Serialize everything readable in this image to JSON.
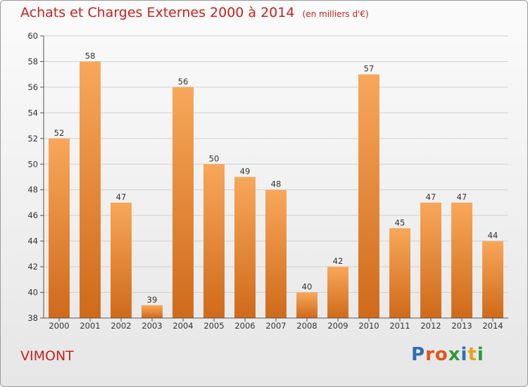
{
  "title": "Achats et Charges Externes 2000 à 2014",
  "unit": "(en milliers d'€)",
  "place": "VIMONT",
  "brand": {
    "letters": [
      "P",
      "r",
      "o",
      "x",
      "i",
      "t",
      "i"
    ],
    "colors": [
      "#2e6fb5",
      "#e2541b",
      "#e2541b",
      "#2f9a3a",
      "#2e6fb5",
      "#e8a11c",
      "#2f9a3a"
    ]
  },
  "colors": {
    "title": "#c8201e",
    "bar_top": "#f8a75a",
    "bar_bottom": "#cf6a1a",
    "axis": "#555555",
    "grid": "#cfcfcf"
  },
  "chart_data": {
    "type": "bar",
    "title": "Achats et Charges Externes 2000 à 2014",
    "xlabel": "",
    "ylabel": "",
    "categories": [
      "2000",
      "2001",
      "2002",
      "2003",
      "2004",
      "2005",
      "2006",
      "2007",
      "2008",
      "2009",
      "2010",
      "2011",
      "2012",
      "2013",
      "2014"
    ],
    "values": [
      52,
      58,
      47,
      39,
      56,
      50,
      49,
      48,
      40,
      42,
      57,
      45,
      47,
      47,
      44
    ],
    "ylim": [
      38,
      60
    ],
    "yticks": [
      38,
      40,
      42,
      44,
      46,
      48,
      50,
      52,
      54,
      56,
      58,
      60
    ],
    "grid": "horizontal",
    "data_labels": true
  }
}
